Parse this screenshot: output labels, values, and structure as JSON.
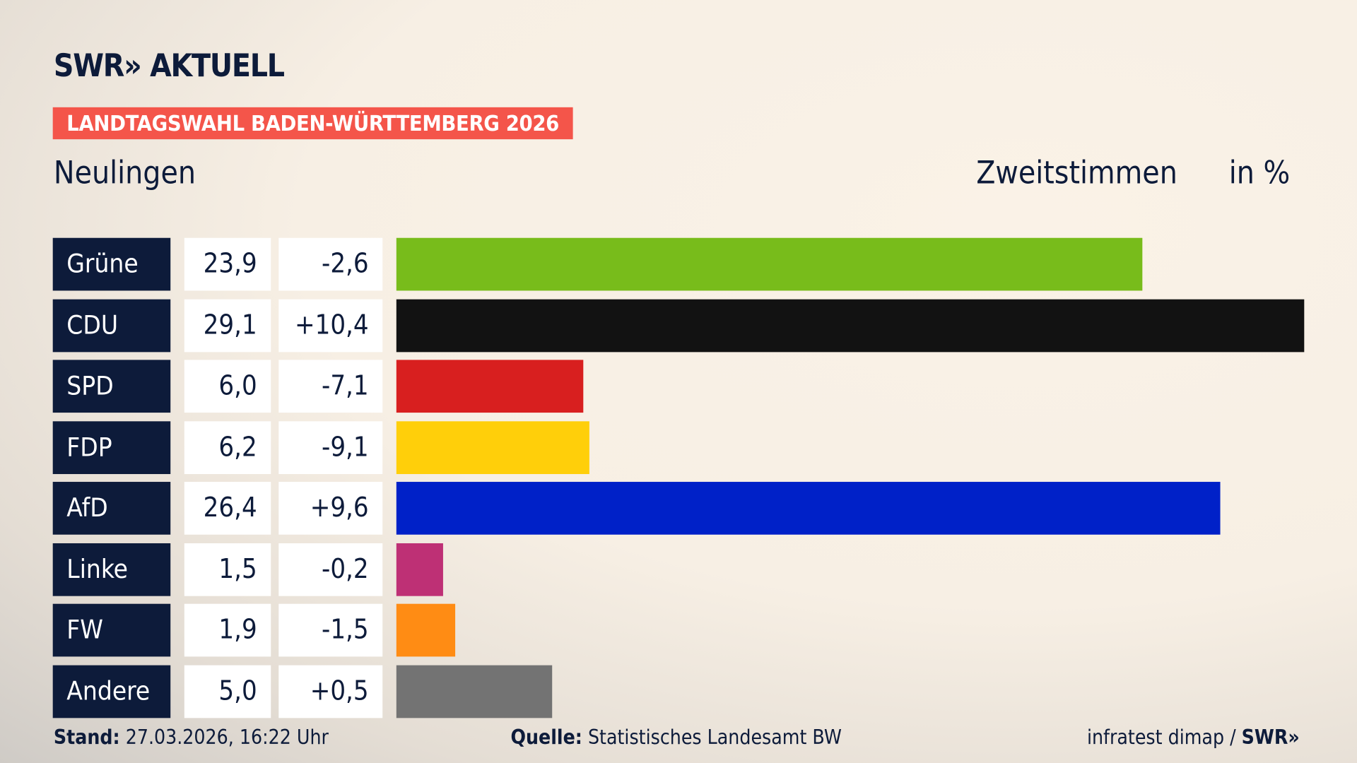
{
  "header": {
    "logo": "SWR» AKTUELL",
    "banner": "LANDTAGSWAHL BADEN-WÜRTTEMBERG 2026",
    "place": "Neulingen",
    "measure": "Zweitstimmen",
    "unit": "in %"
  },
  "chart_data": {
    "type": "bar",
    "orientation": "horizontal",
    "categories": [
      "Grüne",
      "CDU",
      "SPD",
      "FDP",
      "AfD",
      "Linke",
      "FW",
      "Andere"
    ],
    "values": [
      23.9,
      29.1,
      6.0,
      6.2,
      26.4,
      1.5,
      1.9,
      5.0
    ],
    "value_labels": [
      "23,9",
      "29,1",
      "6,0",
      "6,2",
      "26,4",
      "1,5",
      "1,9",
      "5,0"
    ],
    "changes": [
      -2.6,
      10.4,
      -7.1,
      -9.1,
      9.6,
      -0.2,
      -1.5,
      0.5
    ],
    "change_labels": [
      "-2,6",
      "+10,4",
      "-7,1",
      "-9,1",
      "+9,6",
      "-0,2",
      "-1,5",
      "+0,5"
    ],
    "colors": [
      "#78bc1b",
      "#121212",
      "#d81f1f",
      "#ffcf0a",
      "#0021c8",
      "#be3075",
      "#ff8c14",
      "#737373"
    ],
    "title": "Neulingen",
    "ylabel": "Zweitstimmen in %",
    "grid": false
  },
  "footer": {
    "stand_label": "Stand:",
    "stand_value": " 27.03.2026, 16:22 Uhr",
    "source_label": "Quelle:",
    "source_value": " Statistisches Landesamt BW",
    "credit": "infratest dimap / ",
    "credit_logo": "SWR»"
  }
}
